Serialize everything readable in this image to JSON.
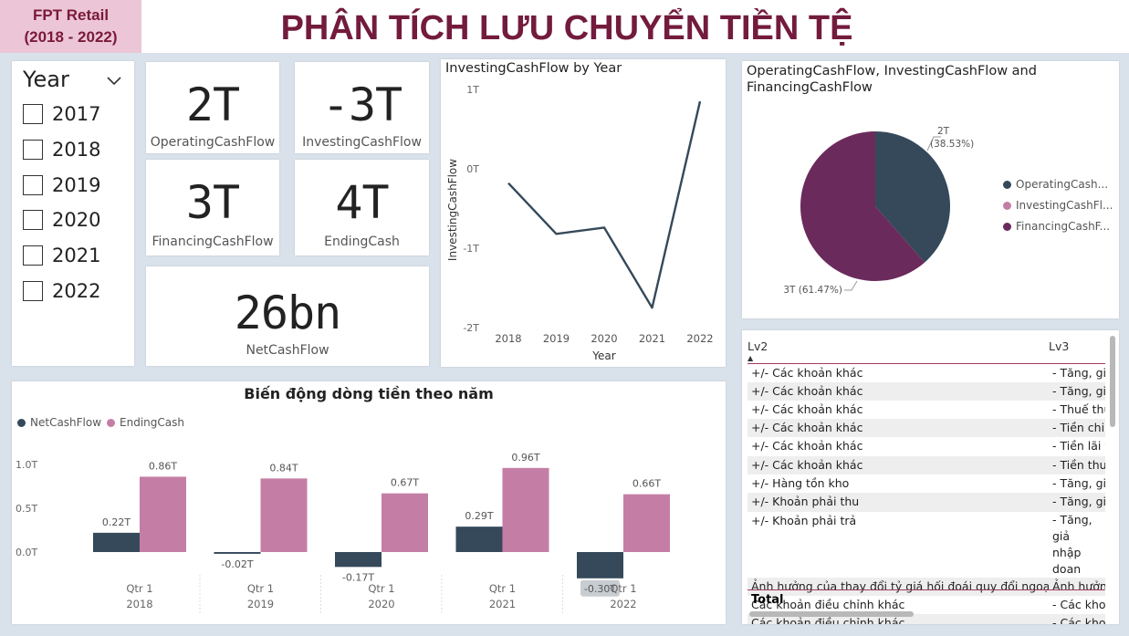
{
  "header": {
    "brand_line1": "FPT Retail",
    "brand_line2": "(2018 - 2022)",
    "title": "PHÂN TÍCH LƯU CHUYỂN TIỀN TỆ"
  },
  "slicer": {
    "title": "Year",
    "items": [
      "2017",
      "2018",
      "2019",
      "2020",
      "2021",
      "2022"
    ]
  },
  "kpis": {
    "operating": {
      "value": "2T",
      "label": "OperatingCashFlow"
    },
    "investing": {
      "value": "-3T",
      "label": "InvestingCashFlow"
    },
    "financing": {
      "value": "3T",
      "label": "FinancingCashFlow"
    },
    "ending": {
      "value": "4T",
      "label": "EndingCash"
    },
    "net": {
      "value": "26bn",
      "label": "NetCashFlow"
    }
  },
  "colors": {
    "dark": "#35495a",
    "pink": "#c47ea6",
    "plum": "#6b2a5c",
    "accent": "#731b3d"
  },
  "line_chart": {
    "title": "InvestingCashFlow by Year",
    "xlabel": "Year",
    "ylabel": "InvestingCashFlow",
    "yticks": [
      "1T",
      "0T",
      "-1T",
      "-2T"
    ],
    "chart_data": {
      "type": "line",
      "x": [
        "2018",
        "2019",
        "2020",
        "2021",
        "2022"
      ],
      "values": [
        -0.18,
        -0.82,
        -0.74,
        -1.75,
        0.85
      ],
      "ylim": [
        -2,
        1
      ]
    }
  },
  "pie_chart": {
    "title": "OperatingCashFlow, InvestingCashFlow and FinancingCashFlow",
    "legend": [
      "OperatingCash...",
      "InvestingCashFl...",
      "FinancingCashF..."
    ],
    "label_operating": "2T",
    "label_operating_pct": "(38.53%)",
    "label_financing": "3T (61.47%)",
    "chart_data": {
      "type": "pie",
      "labels": [
        "OperatingCashFlow",
        "InvestingCashFlow",
        "FinancingCashFlow"
      ],
      "values": [
        38.53,
        0,
        61.47
      ]
    }
  },
  "bar_chart": {
    "title": "Biến động dòng tiền theo năm",
    "legend": [
      "NetCashFlow",
      "EndingCash"
    ],
    "yticks": [
      "1.0T",
      "0.5T",
      "0.0T"
    ],
    "quarter_label": "Qtr 1",
    "chart_data": {
      "type": "bar",
      "categories": [
        "2018",
        "2019",
        "2020",
        "2021",
        "2022"
      ],
      "series": [
        {
          "name": "NetCashFlow",
          "values": [
            0.22,
            -0.02,
            -0.17,
            0.29,
            -0.3
          ],
          "labels": [
            "0.22T",
            "-0.02T",
            "-0.17T",
            "0.29T",
            "-0.30T"
          ]
        },
        {
          "name": "EndingCash",
          "values": [
            0.86,
            0.84,
            0.67,
            0.96,
            0.66
          ],
          "labels": [
            "0.86T",
            "0.84T",
            "0.67T",
            "0.96T",
            "0.66T"
          ]
        }
      ],
      "ylim": [
        -0.3,
        1.0
      ]
    }
  },
  "table": {
    "headers": [
      "Lv2",
      "Lv3"
    ],
    "rows": [
      [
        "+/- Các khoản khác",
        "- Tăng, giả"
      ],
      [
        "+/- Các khoản khác",
        "- Tăng, giả"
      ],
      [
        "+/- Các khoản khác",
        "- Thuế thu"
      ],
      [
        "+/- Các khoản khác",
        "- Tiền chi l"
      ],
      [
        "+/- Các khoản khác",
        "- Tiền lãi v"
      ],
      [
        "+/- Các khoản khác",
        "- Tiền thu"
      ],
      [
        "+/- Hàng tồn kho",
        "- Tăng, giả"
      ],
      [
        "+/- Khoản phải thu",
        "- Tăng, giả"
      ],
      [
        "+/- Khoản phải trả",
        "- Tăng, giả nhập doan"
      ],
      [
        "Ảnh hưởng của thay đổi tỷ giá hối đoái quy đổi ngoại tệ",
        "Ảnh hưởng"
      ],
      [
        "Các khoản điều chỉnh khác",
        "- Các khoả"
      ],
      [
        "Các khoản điều chỉnh khác",
        "- Các khoả"
      ]
    ],
    "total_label": "Total"
  }
}
